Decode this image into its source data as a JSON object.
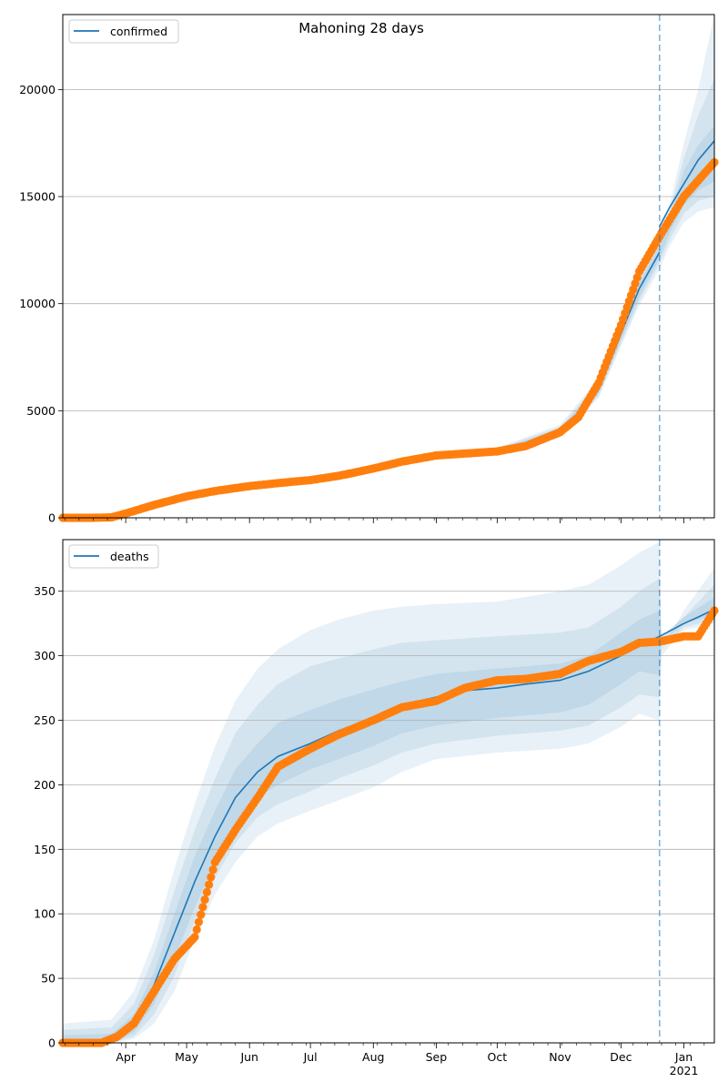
{
  "title": "Mahoning 28 days",
  "chart_data": [
    {
      "type": "line",
      "name": "confirmed-panel",
      "title": "Mahoning 28 days",
      "legend": "top-left",
      "grid": "horizontal",
      "ylim": [
        0,
        23500
      ],
      "yticks": [
        0,
        5000,
        10000,
        15000,
        20000
      ],
      "ytick_labels": [
        "0",
        "5000",
        "10000",
        "15000",
        "20000"
      ],
      "xlim": [
        "2020-03-01",
        "2021-01-16"
      ],
      "forecast_start": "2020-12-20",
      "series": [
        {
          "name": "confirmed",
          "kind": "model-line",
          "color": "#1f77b4",
          "x": [
            "2020-03-01",
            "2020-03-15",
            "2020-03-25",
            "2020-04-01",
            "2020-04-15",
            "2020-05-01",
            "2020-05-15",
            "2020-06-01",
            "2020-06-15",
            "2020-07-01",
            "2020-07-15",
            "2020-08-01",
            "2020-08-15",
            "2020-09-01",
            "2020-09-15",
            "2020-10-01",
            "2020-10-15",
            "2020-11-01",
            "2020-11-10",
            "2020-11-20",
            "2020-12-01",
            "2020-12-10",
            "2020-12-20"
          ],
          "y": [
            0,
            0,
            20,
            200,
            550,
            1000,
            1250,
            1480,
            1620,
            1760,
            1960,
            2300,
            2620,
            2910,
            3000,
            3100,
            3400,
            4000,
            4600,
            6000,
            8600,
            10700,
            12400
          ]
        },
        {
          "name": "forecast",
          "kind": "model-line",
          "color": "#1f77b4",
          "x": [
            "2020-12-20",
            "2020-12-25",
            "2021-01-01",
            "2021-01-08",
            "2021-01-16"
          ],
          "y": [
            13600,
            14500,
            15600,
            16700,
            17600
          ]
        },
        {
          "name": "observed",
          "kind": "points",
          "color": "#ff7f0e",
          "x": [
            "2020-03-01",
            "2020-03-15",
            "2020-03-25",
            "2020-04-01",
            "2020-04-15",
            "2020-05-01",
            "2020-05-15",
            "2020-06-01",
            "2020-06-15",
            "2020-07-01",
            "2020-07-15",
            "2020-08-01",
            "2020-08-15",
            "2020-09-01",
            "2020-09-15",
            "2020-10-01",
            "2020-10-15",
            "2020-11-01",
            "2020-11-10",
            "2020-11-20",
            "2020-12-01",
            "2020-12-10",
            "2020-12-21",
            "2021-01-01",
            "2021-01-16"
          ],
          "y": [
            0,
            0,
            20,
            200,
            600,
            1000,
            1250,
            1480,
            1620,
            1760,
            1960,
            2300,
            2620,
            2910,
            3000,
            3100,
            3350,
            4000,
            4700,
            6300,
            9000,
            11500,
            13300,
            15000,
            16600
          ]
        }
      ],
      "bands": [
        {
          "x": [
            "2020-03-01",
            "2020-03-25",
            "2020-04-15",
            "2020-05-01",
            "2020-06-01",
            "2020-07-01",
            "2020-08-01",
            "2020-09-01",
            "2020-10-01",
            "2020-11-01",
            "2020-11-20",
            "2020-12-01",
            "2020-12-10",
            "2020-12-20",
            "2020-12-25",
            "2021-01-01",
            "2021-01-08",
            "2021-01-16"
          ],
          "lo": [
            [
              0,
              0,
              0,
              0,
              0,
              0,
              0,
              0,
              0,
              0,
              0,
              0,
              0,
              0,
              0,
              0,
              0,
              0
            ]
          ],
          "levels": [
            {
              "lo": [
                0,
                5,
                450,
                900,
                1360,
                1630,
                2150,
                2750,
                2950,
                3750,
                5600,
                8000,
                9900,
                11600,
                12700,
                13800,
                14300,
                14500
              ],
              "hi": [
                80,
                100,
                700,
                1120,
                1620,
                1900,
                2460,
                3070,
                3270,
                4350,
                6500,
                9300,
                11500,
                13300,
                14600,
                17500,
                20000,
                23500
              ]
            },
            {
              "lo": [
                0,
                8,
                480,
                930,
                1390,
                1660,
                2190,
                2800,
                2990,
                3820,
                5700,
                8150,
                10100,
                11900,
                13000,
                14200,
                14800,
                15000
              ],
              "hi": [
                60,
                70,
                660,
                1080,
                1580,
                1860,
                2420,
                3030,
                3230,
                4250,
                6350,
                9100,
                11250,
                13000,
                14300,
                16800,
                18800,
                20500
              ]
            },
            {
              "lo": [
                0,
                12,
                510,
                960,
                1420,
                1700,
                2230,
                2850,
                3030,
                3890,
                5800,
                8300,
                10300,
                12100,
                13300,
                14600,
                15300,
                15700
              ],
              "hi": [
                40,
                45,
                620,
                1040,
                1540,
                1820,
                2380,
                2980,
                3180,
                4150,
                6200,
                8900,
                11000,
                12700,
                14000,
                16200,
                17400,
                18300
              ]
            }
          ]
        }
      ]
    },
    {
      "type": "line",
      "name": "deaths-panel",
      "legend": "top-left",
      "grid": "horizontal",
      "ylim": [
        0,
        390
      ],
      "yticks": [
        0,
        50,
        100,
        150,
        200,
        250,
        300,
        350
      ],
      "ytick_labels": [
        "0",
        "50",
        "100",
        "150",
        "200",
        "250",
        "300",
        "350"
      ],
      "xlim": [
        "2020-03-01",
        "2021-01-16"
      ],
      "forecast_start": "2020-12-20",
      "xtick_labels": [
        "Apr",
        "May",
        "Jun",
        "Jul",
        "Aug",
        "Sep",
        "Oct",
        "Nov",
        "Dec",
        "Jan\n2021"
      ],
      "xticks": [
        "2020-04-01",
        "2020-05-01",
        "2020-06-01",
        "2020-07-01",
        "2020-08-01",
        "2020-09-01",
        "2020-10-01",
        "2020-11-01",
        "2020-12-01",
        "2021-01-01"
      ],
      "series": [
        {
          "name": "deaths",
          "kind": "model-line",
          "color": "#1f77b4",
          "x": [
            "2020-03-01",
            "2020-03-20",
            "2020-03-28",
            "2020-04-05",
            "2020-04-15",
            "2020-04-25",
            "2020-05-05",
            "2020-05-15",
            "2020-05-25",
            "2020-06-05",
            "2020-06-15",
            "2020-07-01",
            "2020-07-15",
            "2020-08-01",
            "2020-08-15",
            "2020-09-01",
            "2020-09-15",
            "2020-10-01",
            "2020-10-15",
            "2020-11-01",
            "2020-11-15",
            "2020-12-01",
            "2020-12-10",
            "2020-12-20",
            "2021-01-01",
            "2021-01-08",
            "2021-01-16"
          ],
          "y": [
            0,
            0,
            2,
            15,
            45,
            85,
            125,
            160,
            190,
            210,
            222,
            232,
            242,
            252,
            262,
            268,
            273,
            275,
            278,
            281,
            288,
            300,
            308,
            315,
            325,
            330,
            336
          ]
        },
        {
          "name": "observed",
          "kind": "points",
          "color": "#ff7f0e",
          "x": [
            "2020-03-01",
            "2020-03-20",
            "2020-03-28",
            "2020-04-05",
            "2020-04-15",
            "2020-04-25",
            "2020-05-05",
            "2020-05-15",
            "2020-05-25",
            "2020-06-05",
            "2020-06-15",
            "2020-07-01",
            "2020-07-15",
            "2020-08-01",
            "2020-08-15",
            "2020-09-01",
            "2020-09-15",
            "2020-10-01",
            "2020-10-15",
            "2020-11-01",
            "2020-11-15",
            "2020-12-01",
            "2020-12-10",
            "2020-12-20",
            "2021-01-01",
            "2021-01-08",
            "2021-01-16"
          ],
          "y": [
            0,
            0,
            5,
            15,
            40,
            65,
            82,
            140,
            165,
            190,
            214,
            228,
            239,
            250,
            260,
            265,
            275,
            281,
            282,
            286,
            296,
            303,
            310,
            311,
            315,
            315,
            335
          ]
        }
      ],
      "bands": [
        {
          "x": [
            "2020-03-01",
            "2020-03-25",
            "2020-04-05",
            "2020-04-15",
            "2020-04-25",
            "2020-05-05",
            "2020-05-15",
            "2020-05-25",
            "2020-06-05",
            "2020-06-15",
            "2020-07-01",
            "2020-07-15",
            "2020-08-01",
            "2020-08-15",
            "2020-09-01",
            "2020-10-01",
            "2020-11-01",
            "2020-11-15",
            "2020-12-01",
            "2020-12-10",
            "2020-12-20",
            "2020-12-21",
            "2021-01-01",
            "2021-01-16"
          ],
          "levels": [
            {
              "lo": [
                0,
                0,
                3,
                15,
                40,
                80,
                115,
                140,
                160,
                170,
                180,
                188,
                198,
                210,
                220,
                225,
                228,
                232,
                245,
                255,
                250,
                300,
                320,
                325
              ],
              "hi": [
                15,
                18,
                40,
                80,
                135,
                185,
                230,
                265,
                290,
                305,
                320,
                328,
                335,
                338,
                340,
                342,
                350,
                355,
                370,
                380,
                388,
                305,
                335,
                368
              ]
            },
            {
              "lo": [
                0,
                0,
                5,
                22,
                52,
                95,
                128,
                155,
                175,
                185,
                195,
                205,
                215,
                225,
                232,
                238,
                242,
                246,
                260,
                270,
                268,
                305,
                322,
                328
              ],
              "hi": [
                10,
                12,
                30,
                68,
                118,
                165,
                205,
                240,
                262,
                278,
                292,
                298,
                305,
                310,
                312,
                315,
                318,
                322,
                338,
                350,
                360,
                315,
                330,
                355
              ]
            },
            {
              "lo": [
                0,
                0,
                8,
                30,
                65,
                105,
                140,
                168,
                190,
                200,
                212,
                220,
                230,
                240,
                246,
                252,
                256,
                262,
                278,
                288,
                285,
                310,
                325,
                332
              ],
              "hi": [
                6,
                7,
                22,
                55,
                100,
                145,
                180,
                212,
                232,
                248,
                258,
                266,
                274,
                280,
                286,
                290,
                294,
                300,
                318,
                328,
                335,
                315,
                330,
                345
              ]
            }
          ]
        }
      ]
    }
  ],
  "legend_top": "confirmed",
  "legend_bottom": "deaths"
}
